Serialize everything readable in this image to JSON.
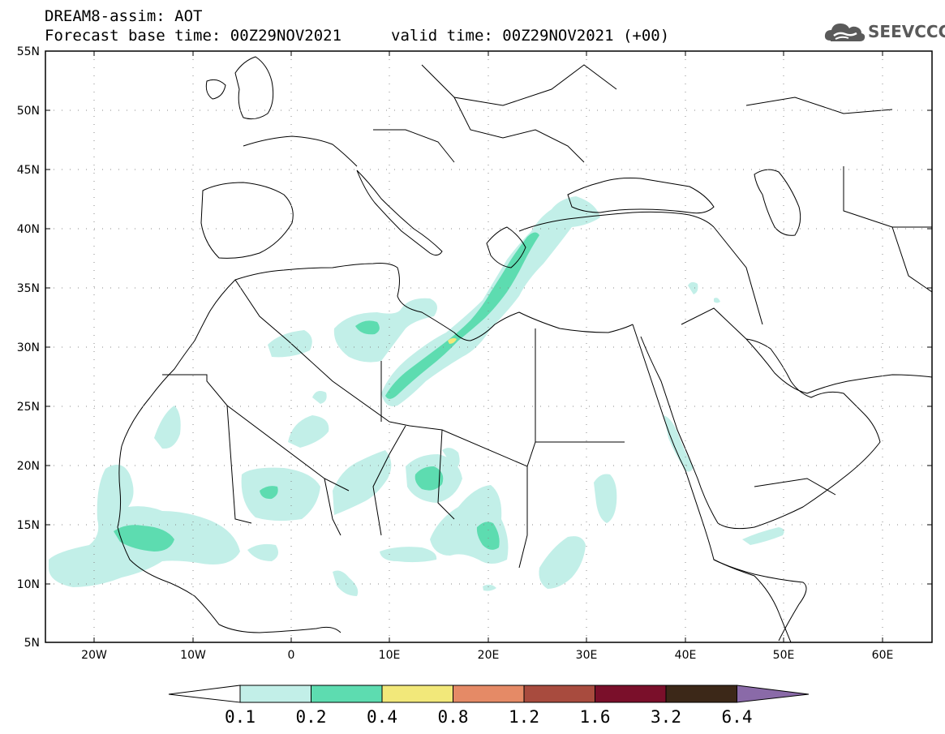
{
  "header": {
    "title": "DREAM8-assim: AOT",
    "base_time": "Forecast base time: 00Z29NOV2021",
    "valid_time": "valid time: 00Z29NOV2021 (+00)"
  },
  "logo": {
    "text": "SEEVCCC",
    "icon": "cloud-icon"
  },
  "map": {
    "lat_labels": [
      "55N",
      "50N",
      "45N",
      "40N",
      "35N",
      "30N",
      "25N",
      "20N",
      "15N",
      "10N",
      "5N"
    ],
    "lon_labels": [
      "20W",
      "10W",
      "0",
      "10E",
      "20E",
      "30E",
      "40E",
      "50E",
      "60E"
    ],
    "extent": {
      "lon_min": -25,
      "lon_max": 65,
      "lat_min": 5,
      "lat_max": 55
    }
  },
  "colorbar": {
    "labels": [
      "0.1",
      "0.2",
      "0.4",
      "0.8",
      "1.2",
      "1.6",
      "3.2",
      "6.4"
    ],
    "colors": [
      "#c2efe8",
      "#5ddcb0",
      "#f2e87a",
      "#e58a66",
      "#a84b3e",
      "#7a0f2a",
      "#3c2818",
      "#8a6aa8"
    ]
  }
}
